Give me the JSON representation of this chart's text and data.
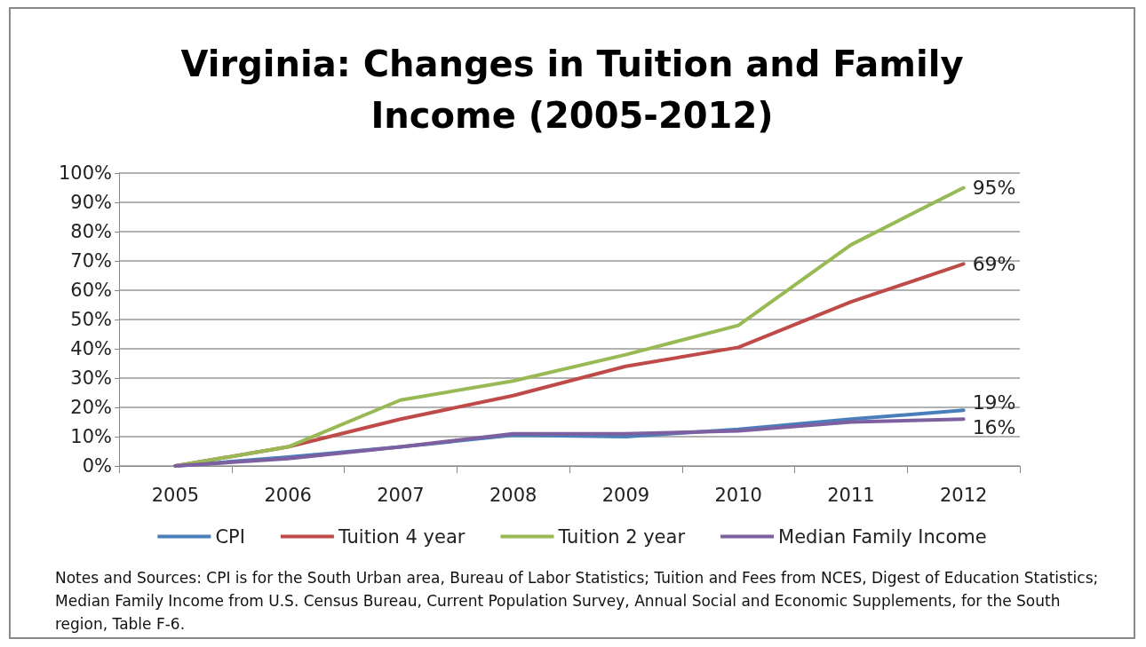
{
  "chart_data": {
    "type": "line",
    "title": "Virginia: Changes in Tuition and Family\nIncome (2005-2012)",
    "categories": [
      "2005",
      "2006",
      "2007",
      "2008",
      "2009",
      "2010",
      "2011",
      "2012"
    ],
    "series": [
      {
        "name": "CPI",
        "color": "#4a7ebb",
        "values": [
          0,
          3,
          6.5,
          10.5,
          10,
          12.5,
          16,
          19
        ],
        "value_labels": [
          null,
          null,
          null,
          null,
          null,
          null,
          null,
          "19%"
        ]
      },
      {
        "name": "Tuition 4 year",
        "color": "#be4b48",
        "values": [
          0,
          6.5,
          16,
          24,
          34,
          40.5,
          56,
          69
        ],
        "value_labels": [
          null,
          null,
          null,
          null,
          null,
          null,
          null,
          "69%"
        ]
      },
      {
        "name": "Tuition 2 year",
        "color": "#98b954",
        "values": [
          0,
          6.5,
          22.5,
          29,
          38,
          48,
          75.5,
          95
        ],
        "value_labels": [
          null,
          null,
          null,
          null,
          null,
          null,
          null,
          "95%"
        ]
      },
      {
        "name": "Median Family Income",
        "color": "#7d60a0",
        "values": [
          0,
          2.5,
          6.5,
          11,
          11,
          12,
          15,
          16
        ],
        "value_labels": [
          null,
          null,
          null,
          null,
          null,
          null,
          null,
          "16%"
        ]
      }
    ],
    "ylim": [
      0,
      100
    ],
    "yticks": [
      {
        "value": 0,
        "label": "0%"
      },
      {
        "value": 10,
        "label": "10%"
      },
      {
        "value": 20,
        "label": "20%"
      },
      {
        "value": 30,
        "label": "30%"
      },
      {
        "value": 40,
        "label": "40%"
      },
      {
        "value": 50,
        "label": "50%"
      },
      {
        "value": 60,
        "label": "60%"
      },
      {
        "value": 70,
        "label": "70%"
      },
      {
        "value": 80,
        "label": "80%"
      },
      {
        "value": 90,
        "label": "90%"
      },
      {
        "value": 100,
        "label": "100%"
      }
    ],
    "grid": "y",
    "legend": "bottom",
    "marker": "none",
    "line_style": "solid",
    "annotations": [
      "Notes and Sources: CPI is for the South Urban area, Bureau of Labor Statistics; Tuition and Fees  from NCES, Digest of Education Statistics; Median Family Income from U.S. Census Bureau, Current Population Survey, Annual Social and Economic Supplements, for the South region, Table F-6."
    ]
  }
}
